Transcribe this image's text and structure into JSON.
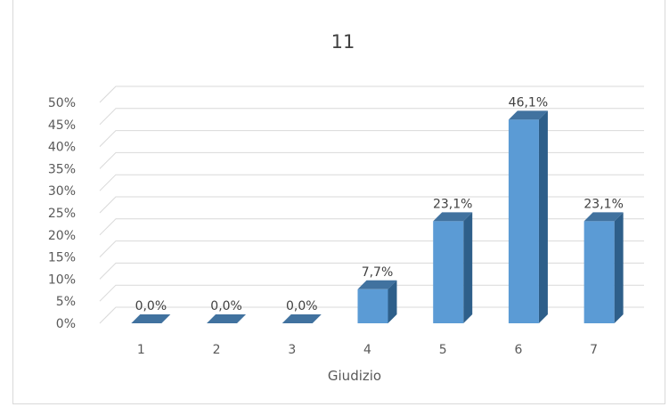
{
  "chart_data": {
    "type": "bar",
    "title": "11",
    "xlabel": "Giudizio",
    "ylabel": "",
    "categories": [
      "1",
      "2",
      "3",
      "4",
      "5",
      "6",
      "7"
    ],
    "values": [
      0.0,
      0.0,
      0.0,
      7.7,
      23.1,
      46.1,
      23.1
    ],
    "data_labels": [
      "0,0%",
      "0,0%",
      "0,0%",
      "7,7%",
      "23,1%",
      "46,1%",
      "23,1%"
    ],
    "y_ticks": [
      "0%",
      "5%",
      "10%",
      "15%",
      "20%",
      "25%",
      "30%",
      "35%",
      "40%",
      "45%",
      "50%"
    ],
    "ylim": [
      0,
      50
    ],
    "grid": true,
    "legend": "none",
    "style": "3d-column",
    "colors": {
      "front": "#5b9bd5",
      "side": "#2e5f8a",
      "top": "#41729f",
      "grid": "#d9d9d9"
    }
  }
}
